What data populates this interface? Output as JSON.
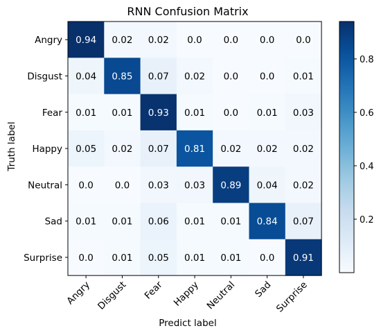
{
  "chart_data": {
    "type": "heatmap",
    "title": "RNN Confusion Matrix",
    "xlabel": "Predict label",
    "ylabel": "Truth label",
    "x_categories": [
      "Angry",
      "Disgust",
      "Fear",
      "Happy",
      "Neutral",
      "Sad",
      "Surprise"
    ],
    "y_categories": [
      "Angry",
      "Disgust",
      "Fear",
      "Happy",
      "Neutral",
      "Sad",
      "Surprise"
    ],
    "values": [
      [
        "0.94",
        "0.02",
        "0.02",
        "0.0",
        "0.0",
        "0.0",
        "0.0"
      ],
      [
        "0.04",
        "0.85",
        "0.07",
        "0.02",
        "0.0",
        "0.0",
        "0.01"
      ],
      [
        "0.01",
        "0.01",
        "0.93",
        "0.01",
        "0.0",
        "0.01",
        "0.03"
      ],
      [
        "0.05",
        "0.02",
        "0.07",
        "0.81",
        "0.02",
        "0.02",
        "0.02"
      ],
      [
        "0.0",
        "0.0",
        "0.03",
        "0.03",
        "0.89",
        "0.04",
        "0.02"
      ],
      [
        "0.01",
        "0.01",
        "0.06",
        "0.01",
        "0.01",
        "0.84",
        "0.07"
      ],
      [
        "0.0",
        "0.01",
        "0.05",
        "0.01",
        "0.01",
        "0.0",
        "0.91"
      ]
    ],
    "colorbar": {
      "colormap": "Blues",
      "vmin": 0.0,
      "vmax": 0.94,
      "ticks": [
        "0.2",
        "0.4",
        "0.6",
        "0.8"
      ]
    }
  }
}
